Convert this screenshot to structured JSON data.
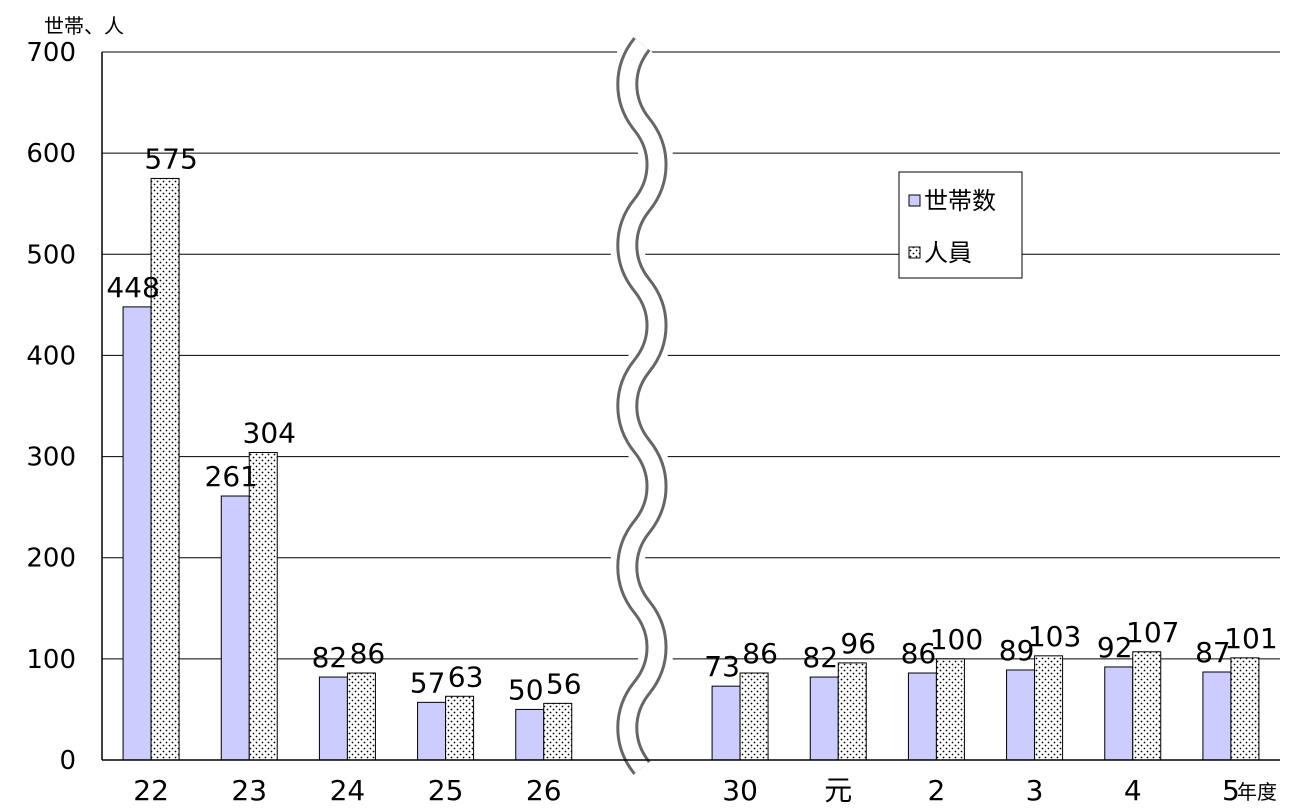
{
  "chart_data": {
    "type": "bar",
    "y_unit_label": "世帯、人",
    "x_unit_label": "年度",
    "categories": [
      "22",
      "23",
      "24",
      "25",
      "26",
      "",
      "30",
      "元",
      "2",
      "3",
      "4",
      "5"
    ],
    "axis_break_after_index": 5,
    "ylim": [
      0,
      700
    ],
    "yticks": [
      0,
      100,
      200,
      300,
      400,
      500,
      600,
      700
    ],
    "grid": true,
    "legend_position": "upper-right",
    "series": [
      {
        "name": "世帯数",
        "color": "#ccccff",
        "pattern": "solid",
        "values": [
          448,
          261,
          82,
          57,
          50,
          null,
          73,
          82,
          86,
          89,
          92,
          87
        ],
        "labels": [
          "448",
          "261",
          "82",
          "57",
          "50",
          "",
          "73",
          "82",
          "86",
          "89",
          "92",
          "87"
        ]
      },
      {
        "name": "人員",
        "color": "#ffffff",
        "pattern": "dots",
        "values": [
          575,
          304,
          86,
          63,
          56,
          null,
          86,
          96,
          100,
          103,
          107,
          101
        ],
        "labels": [
          "575",
          "304",
          "86",
          "63",
          "56",
          "",
          "86",
          "96",
          "100",
          "103",
          "107",
          "101"
        ]
      }
    ]
  }
}
